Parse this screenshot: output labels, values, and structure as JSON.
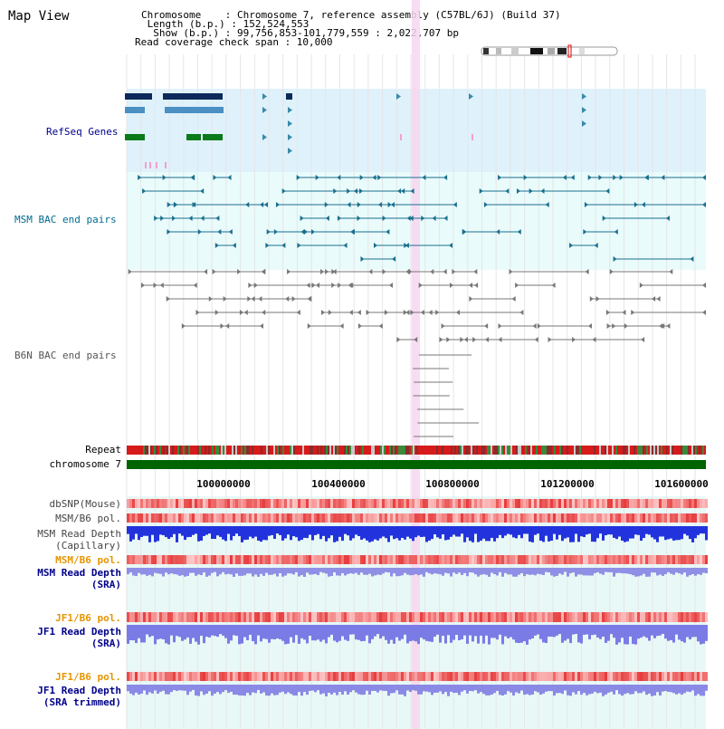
{
  "title": "Map View",
  "info": {
    "chromosome": "Chromosome    : Chromosome 7, reference assembly (C57BL/6J) (Build 37)",
    "length": " Length (b.p.) : 152,524,553",
    "show": "  Show (b.p.) : 99,756,853-101,779,559 : 2,022,707 bp",
    "coverage": "Read coverage check span : 10,000"
  },
  "tracks": {
    "refseq": "RefSeq Genes",
    "msm_bac": "MSM BAC end pairs",
    "b6n_bac": "B6N BAC end pairs",
    "repeat": "Repeat",
    "chromosome": "chromosome 7",
    "dbsnp": "dbSNP(Mouse)",
    "msm_b6_pol_1": "MSM/B6 pol.",
    "msm_depth_cap_1": "MSM Read Depth",
    "msm_depth_cap_2": "(Capillary)",
    "msm_b6_pol_2": "MSM/B6 pol.",
    "msm_depth_sra_1": "MSM Read Depth",
    "msm_depth_sra_2": "(SRA)",
    "jf1_b6_pol_1": "JF1/B6 pol.",
    "jf1_depth_sra_1": "JF1 Read Depth",
    "jf1_depth_sra_2": "(SRA)",
    "jf1_b6_pol_2": "JF1/B6 pol.",
    "jf1_depth_trim_1": "JF1 Read Depth",
    "jf1_depth_trim_2": "(SRA trimmed)"
  },
  "ticks": [
    "100000000",
    "100400000",
    "100800000",
    "101200000",
    "101600000"
  ],
  "colors": {
    "refseq_bg": "#dff1fb",
    "msm_bac_bg": "#e9fbfb",
    "highlight": "#f7d6ee",
    "refseq_label": "#00008b",
    "msm_label": "#006b8f",
    "b6n_label": "#555555",
    "pol_label": "#e69500",
    "depth_label": "#00008b",
    "chromosome_bar": "#006400"
  }
}
